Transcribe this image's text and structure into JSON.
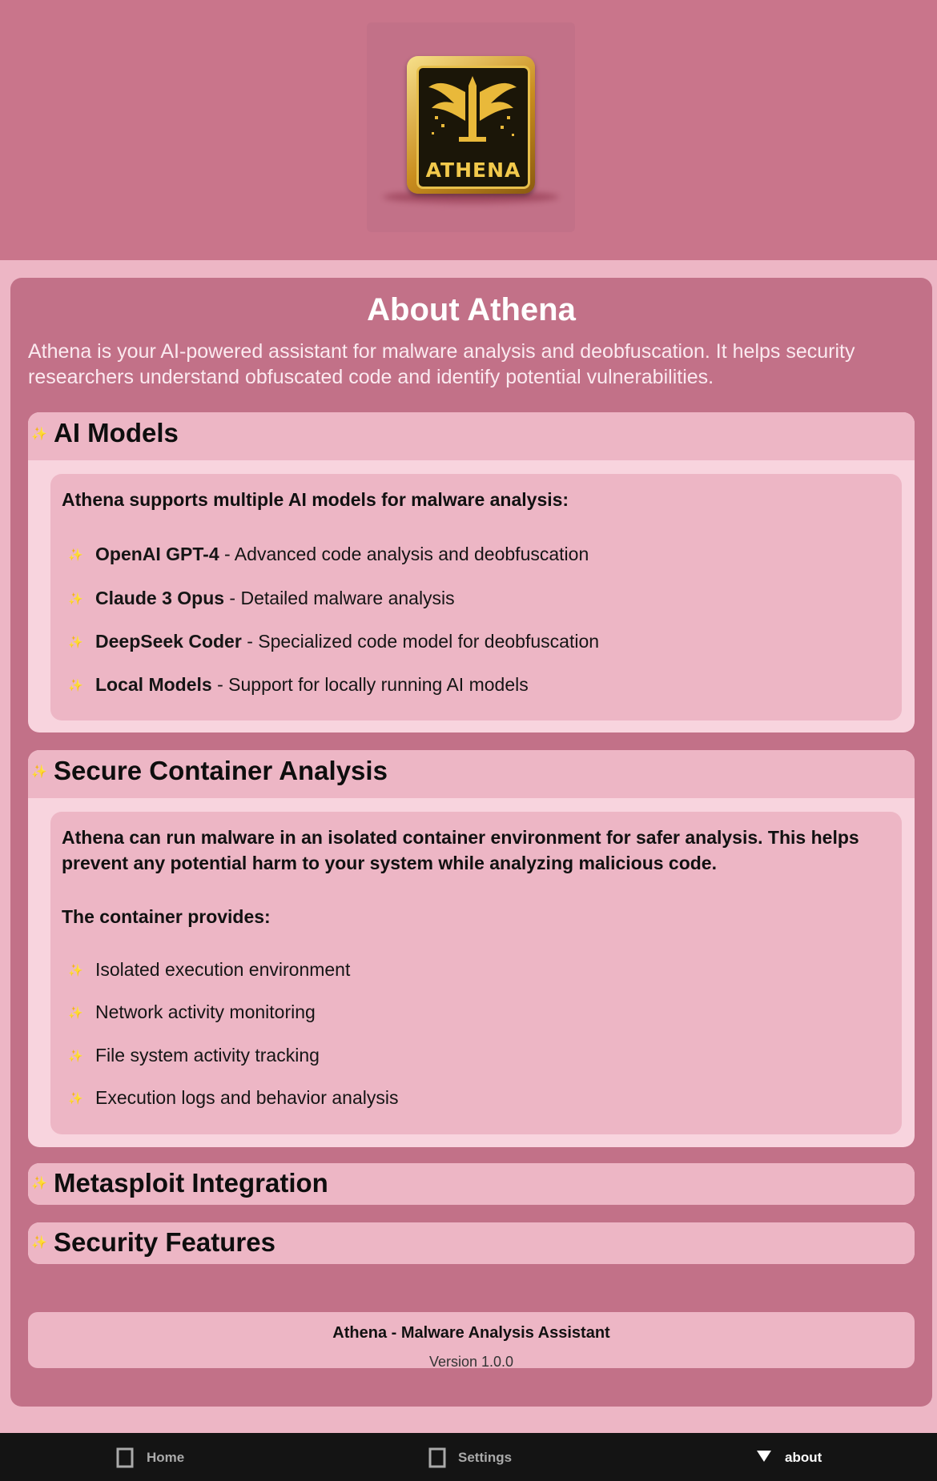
{
  "header": {
    "logo_text": "ATHENA"
  },
  "about": {
    "title": "About Athena",
    "intro": "Athena is your AI-powered assistant for malware analysis and deobfuscation. It helps security researchers understand obfuscated code and identify potential vulnerabilities."
  },
  "sections": [
    {
      "title": "AI Models",
      "expanded": true,
      "body_intro": "Athena supports multiple AI models for malware analysis:",
      "items": [
        {
          "name": "OpenAI GPT-4",
          "desc": " - Advanced code analysis and deobfuscation"
        },
        {
          "name": "Claude 3 Opus",
          "desc": " - Detailed malware analysis"
        },
        {
          "name": "DeepSeek Coder",
          "desc": " - Specialized code model for deobfuscation"
        },
        {
          "name": "Local Models",
          "desc": " - Support for locally running AI models"
        }
      ]
    },
    {
      "title": "Secure Container Analysis",
      "expanded": true,
      "body_intro": "Athena can run malware in an isolated container environment for safer analysis. This helps prevent any potential harm to your system while analyzing malicious code.",
      "body_subhead": "The container provides:",
      "items": [
        {
          "desc": "Isolated execution environment"
        },
        {
          "desc": "Network activity monitoring"
        },
        {
          "desc": "File system activity tracking"
        },
        {
          "desc": "Execution logs and behavior analysis"
        }
      ]
    },
    {
      "title": "Metasploit Integration",
      "expanded": false
    },
    {
      "title": "Security Features",
      "expanded": false
    }
  ],
  "footer": {
    "app_name": "Athena - Malware Analysis Assistant",
    "version": "Version 1.0.0"
  },
  "nav": {
    "items": [
      {
        "label": "Home",
        "icon": "square-icon",
        "active": false
      },
      {
        "label": "Settings",
        "icon": "square-icon",
        "active": false
      },
      {
        "label": "about",
        "icon": "triangle-down-icon",
        "active": true
      }
    ]
  },
  "colors": {
    "header_bg": "#c9758b",
    "panel_bg": "#c27188",
    "card_bg": "#edb6c5",
    "accent": "#f3d766",
    "navbar_bg": "#141414"
  }
}
